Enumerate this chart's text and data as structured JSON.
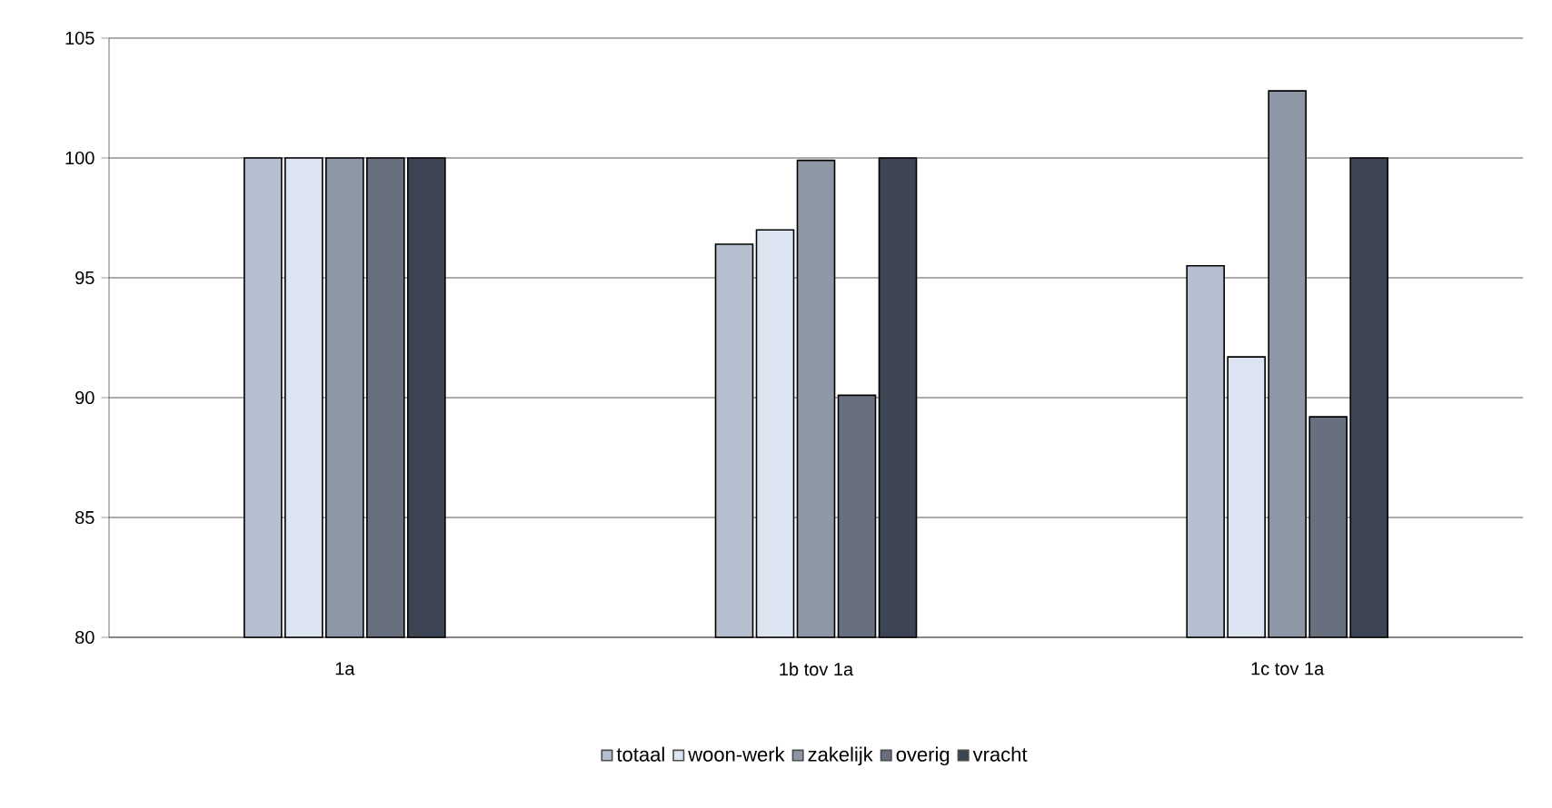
{
  "chart_data": {
    "type": "bar",
    "categories": [
      "1a",
      "1b tov 1a",
      "1c tov 1a"
    ],
    "series": [
      {
        "name": "totaal",
        "color": "#b5bfcf",
        "values": [
          100,
          96.4,
          95.5
        ]
      },
      {
        "name": "woon-werk",
        "color": "#dce4f2",
        "values": [
          100,
          97.0,
          91.7
        ]
      },
      {
        "name": "zakelijk",
        "color": "#8e97a6",
        "values": [
          100,
          99.9,
          102.8
        ]
      },
      {
        "name": "overig",
        "color": "#686f7e",
        "values": [
          100,
          90.1,
          89.2
        ]
      },
      {
        "name": "vracht",
        "color": "#3d4554",
        "values": [
          100,
          100,
          100
        ]
      }
    ],
    "ylim": [
      80,
      105
    ],
    "yticks": [
      80,
      85,
      90,
      95,
      100,
      105
    ],
    "grid": "y",
    "legend": "bottom"
  }
}
